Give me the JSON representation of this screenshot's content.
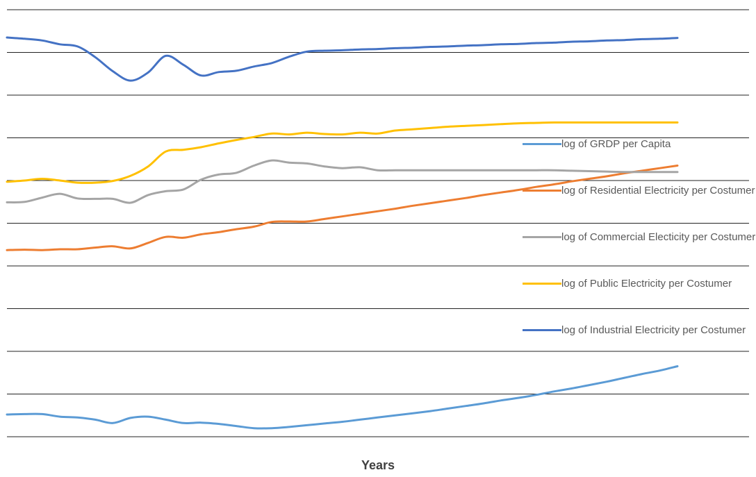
{
  "chart_data": {
    "type": "line",
    "title": "",
    "xlabel": "Years",
    "ylabel": "",
    "x": [
      1,
      2,
      3,
      4,
      5,
      6,
      7,
      8,
      9,
      10,
      11,
      12,
      13,
      14,
      15,
      16,
      17,
      18,
      19,
      20,
      21,
      22,
      23,
      24,
      25,
      26,
      27,
      28,
      29,
      30,
      31,
      32,
      33,
      34,
      35,
      36,
      37,
      38,
      39
    ],
    "ylim": [
      0,
      10
    ],
    "grid": true,
    "legend_position": "right",
    "series": [
      {
        "name": "log of GRDP per Capita",
        "color": "#5B9BD5",
        "values": [
          0.52,
          0.53,
          0.53,
          0.47,
          0.45,
          0.4,
          0.32,
          0.44,
          0.47,
          0.4,
          0.32,
          0.33,
          0.3,
          0.25,
          0.2,
          0.2,
          0.23,
          0.27,
          0.31,
          0.35,
          0.4,
          0.45,
          0.5,
          0.55,
          0.6,
          0.66,
          0.72,
          0.78,
          0.85,
          0.91,
          0.98,
          1.06,
          1.13,
          1.21,
          1.29,
          1.38,
          1.47,
          1.55,
          1.65
        ]
      },
      {
        "name": "log of Residential Electricity per Costumer",
        "color": "#ED7D31",
        "values": [
          4.37,
          4.38,
          4.37,
          4.39,
          4.39,
          4.43,
          4.46,
          4.41,
          4.54,
          4.68,
          4.66,
          4.74,
          4.79,
          4.86,
          4.92,
          5.03,
          5.04,
          5.04,
          5.1,
          5.16,
          5.22,
          5.28,
          5.34,
          5.41,
          5.47,
          5.53,
          5.59,
          5.66,
          5.72,
          5.78,
          5.85,
          5.91,
          5.98,
          6.04,
          6.1,
          6.17,
          6.23,
          6.29,
          6.35
        ]
      },
      {
        "name": "log of Commercial Electicity per Costumer",
        "color": "#A5A5A5",
        "values": [
          5.49,
          5.5,
          5.6,
          5.69,
          5.58,
          5.57,
          5.57,
          5.48,
          5.66,
          5.75,
          5.79,
          6.02,
          6.14,
          6.18,
          6.35,
          6.47,
          6.42,
          6.4,
          6.33,
          6.29,
          6.31,
          6.24,
          6.24,
          6.24,
          6.24,
          6.24,
          6.24,
          6.24,
          6.24,
          6.24,
          6.24,
          6.24,
          6.23,
          6.22,
          6.21,
          6.2,
          6.2,
          6.2,
          6.2
        ]
      },
      {
        "name": "log of Public Electricity per Costumer",
        "color": "#FFC000",
        "values": [
          5.97,
          6.0,
          6.04,
          6.0,
          5.95,
          5.95,
          5.99,
          6.11,
          6.33,
          6.68,
          6.72,
          6.78,
          6.87,
          6.95,
          7.02,
          7.1,
          7.08,
          7.12,
          7.09,
          7.08,
          7.12,
          7.1,
          7.17,
          7.2,
          7.23,
          7.26,
          7.28,
          7.3,
          7.32,
          7.34,
          7.35,
          7.36,
          7.36,
          7.36,
          7.36,
          7.36,
          7.36,
          7.36,
          7.36
        ]
      },
      {
        "name": "log of Industrial Electricity per Costumer",
        "color": "#4472C4",
        "values": [
          9.35,
          9.32,
          9.28,
          9.19,
          9.14,
          8.89,
          8.56,
          8.34,
          8.53,
          8.92,
          8.71,
          8.46,
          8.54,
          8.57,
          8.67,
          8.75,
          8.9,
          9.02,
          9.04,
          9.05,
          9.07,
          9.08,
          9.1,
          9.11,
          9.13,
          9.14,
          9.16,
          9.17,
          9.19,
          9.2,
          9.22,
          9.23,
          9.25,
          9.26,
          9.28,
          9.29,
          9.31,
          9.32,
          9.34
        ]
      }
    ],
    "legend_order": [
      0,
      1,
      2,
      3,
      4
    ]
  }
}
